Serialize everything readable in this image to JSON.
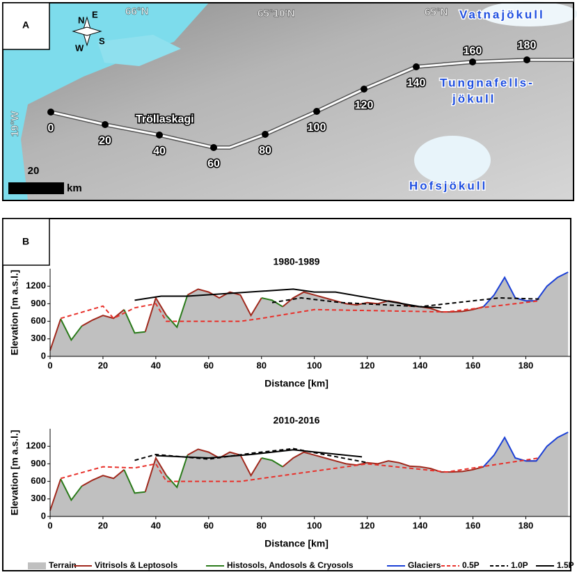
{
  "panel_a": {
    "label": "A",
    "map_labels": [
      "66°N",
      "65°10'N",
      "65°N",
      "19°W",
      "Vatnajökull",
      "Tungnafells-",
      "jökull",
      "Hofsjökull",
      "Tröllaskagi"
    ],
    "compass": [
      "N",
      "E",
      "S",
      "W"
    ],
    "route_markers": [
      "0",
      "20",
      "40",
      "60",
      "80",
      "100",
      "120",
      "140",
      "160",
      "180"
    ],
    "scale_bar": {
      "value": "20",
      "unit": "km"
    }
  },
  "panel_b": {
    "label": "B"
  },
  "chart_data": [
    {
      "type": "line",
      "title": "1980-1989",
      "x_label": "Distance [km]",
      "y_label": "Elevation [m a.s.l.]",
      "x": [
        0,
        4,
        8,
        12,
        16,
        20,
        24,
        28,
        32,
        36,
        40,
        44,
        48,
        52,
        56,
        60,
        64,
        68,
        72,
        76,
        80,
        84,
        88,
        92,
        96,
        100,
        104,
        108,
        112,
        116,
        120,
        124,
        128,
        132,
        136,
        140,
        144,
        148,
        152,
        156,
        160,
        164,
        168,
        172,
        176,
        180,
        184,
        188,
        192,
        196
      ],
      "xlim": [
        0,
        197
      ],
      "xticks": [
        0,
        20,
        40,
        60,
        80,
        100,
        120,
        140,
        160,
        180
      ],
      "ylim": [
        0,
        1500
      ],
      "yticks": [
        0,
        300,
        600,
        900,
        1200
      ],
      "series": [
        {
          "name": "Terrain",
          "style": "area",
          "color": "#c0c0c0",
          "values": [
            100,
            640,
            280,
            520,
            620,
            700,
            650,
            800,
            400,
            420,
            1000,
            700,
            500,
            1050,
            1150,
            1100,
            1000,
            1100,
            1050,
            700,
            1000,
            960,
            850,
            1000,
            1100,
            1050,
            1000,
            950,
            900,
            880,
            920,
            900,
            950,
            920,
            860,
            850,
            820,
            760,
            760,
            770,
            800,
            850,
            1050,
            1350,
            1000,
            950,
            950,
            1200,
            1350,
            1440
          ]
        },
        {
          "name": "Vitrisols & Leptosols",
          "style": "line",
          "color": "#a0281c",
          "values": [
            100,
            640,
            null,
            520,
            620,
            700,
            650,
            800,
            null,
            420,
            1000,
            700,
            null,
            1050,
            1150,
            1100,
            1000,
            1100,
            1050,
            700,
            1000,
            null,
            850,
            1000,
            1100,
            1050,
            1000,
            950,
            900,
            880,
            920,
            900,
            950,
            920,
            860,
            850,
            820,
            760,
            760,
            770,
            800,
            850,
            null,
            null,
            null,
            950,
            950,
            null,
            null,
            null
          ]
        },
        {
          "name": "Histosols, Andosols & Cryosols",
          "style": "line",
          "color": "#2a7a1a",
          "values": [
            null,
            640,
            280,
            520,
            null,
            null,
            null,
            800,
            400,
            420,
            null,
            700,
            500,
            1050,
            null,
            null,
            null,
            null,
            null,
            null,
            1000,
            960,
            850,
            null,
            null,
            null,
            null,
            null,
            null,
            null,
            null,
            null,
            null,
            null,
            null,
            null,
            null,
            null,
            null,
            null,
            null,
            null,
            null,
            null,
            null,
            null,
            null,
            null,
            null,
            null
          ]
        },
        {
          "name": "Glaciers",
          "style": "line",
          "color": "#1a3fd6",
          "values": [
            null,
            null,
            null,
            null,
            null,
            null,
            null,
            null,
            null,
            null,
            null,
            null,
            null,
            null,
            null,
            null,
            null,
            null,
            null,
            null,
            null,
            null,
            null,
            null,
            null,
            null,
            null,
            null,
            null,
            null,
            null,
            null,
            null,
            null,
            null,
            null,
            null,
            null,
            null,
            null,
            null,
            850,
            1050,
            1350,
            1000,
            950,
            950,
            1200,
            1350,
            1440
          ]
        },
        {
          "name": "0.5P",
          "style": "line",
          "dash": true,
          "color": "#e8302a",
          "x": [
            4,
            20,
            24,
            32,
            40,
            44,
            72,
            80,
            100,
            150,
            185
          ],
          "values": [
            650,
            860,
            650,
            830,
            900,
            600,
            600,
            650,
            800,
            760,
            950
          ]
        },
        {
          "name": "1.0P",
          "style": "line",
          "dash": true,
          "color": "#000000",
          "x": [
            84,
            95,
            110,
            140,
            170,
            185
          ],
          "values": [
            920,
            1000,
            920,
            850,
            1000,
            980
          ]
        },
        {
          "name": "1.5P",
          "style": "line",
          "color": "#000000",
          "x": [
            32,
            42,
            52,
            92,
            100,
            108,
            140,
            148
          ],
          "values": [
            960,
            1030,
            1030,
            1150,
            1100,
            1100,
            850,
            830
          ]
        }
      ]
    },
    {
      "type": "line",
      "title": "2010-2016",
      "x_label": "Distance [km]",
      "y_label": "Elevation [m a.s.l.]",
      "x": [
        0,
        4,
        8,
        12,
        16,
        20,
        24,
        28,
        32,
        36,
        40,
        44,
        48,
        52,
        56,
        60,
        64,
        68,
        72,
        76,
        80,
        84,
        88,
        92,
        96,
        100,
        104,
        108,
        112,
        116,
        120,
        124,
        128,
        132,
        136,
        140,
        144,
        148,
        152,
        156,
        160,
        164,
        168,
        172,
        176,
        180,
        184,
        188,
        192,
        196
      ],
      "xlim": [
        0,
        197
      ],
      "xticks": [
        0,
        20,
        40,
        60,
        80,
        100,
        120,
        140,
        160,
        180
      ],
      "ylim": [
        0,
        1500
      ],
      "yticks": [
        0,
        300,
        600,
        900,
        1200
      ],
      "series": [
        {
          "name": "Terrain",
          "style": "area",
          "color": "#c0c0c0",
          "values": [
            100,
            640,
            280,
            520,
            620,
            700,
            650,
            800,
            400,
            420,
            1000,
            700,
            500,
            1050,
            1150,
            1100,
            1000,
            1100,
            1050,
            700,
            1000,
            960,
            850,
            1000,
            1100,
            1050,
            1000,
            950,
            900,
            880,
            920,
            900,
            950,
            920,
            860,
            850,
            820,
            760,
            760,
            770,
            800,
            850,
            1050,
            1350,
            1000,
            950,
            950,
            1200,
            1350,
            1440
          ]
        },
        {
          "name": "Vitrisols & Leptosols",
          "style": "line",
          "color": "#a0281c",
          "values": [
            100,
            640,
            null,
            520,
            620,
            700,
            650,
            800,
            null,
            420,
            1000,
            700,
            null,
            1050,
            1150,
            1100,
            1000,
            1100,
            1050,
            700,
            1000,
            null,
            850,
            1000,
            1100,
            1050,
            1000,
            950,
            900,
            880,
            920,
            900,
            950,
            920,
            860,
            850,
            820,
            760,
            760,
            770,
            800,
            850,
            null,
            null,
            null,
            950,
            950,
            null,
            null,
            null
          ]
        },
        {
          "name": "Histosols, Andosols & Cryosols",
          "style": "line",
          "color": "#2a7a1a",
          "values": [
            null,
            640,
            280,
            520,
            null,
            null,
            null,
            800,
            400,
            420,
            null,
            700,
            500,
            1050,
            null,
            null,
            null,
            null,
            null,
            null,
            1000,
            960,
            850,
            null,
            null,
            null,
            null,
            null,
            null,
            null,
            null,
            null,
            null,
            null,
            null,
            null,
            null,
            null,
            null,
            null,
            null,
            null,
            null,
            null,
            null,
            null,
            null,
            null,
            null,
            null
          ]
        },
        {
          "name": "Glaciers",
          "style": "line",
          "color": "#1a3fd6",
          "values": [
            null,
            null,
            null,
            null,
            null,
            null,
            null,
            null,
            null,
            null,
            null,
            null,
            null,
            null,
            null,
            null,
            null,
            null,
            null,
            null,
            null,
            null,
            null,
            null,
            null,
            null,
            null,
            null,
            null,
            null,
            null,
            null,
            null,
            null,
            null,
            null,
            null,
            null,
            null,
            null,
            null,
            850,
            1050,
            1350,
            1000,
            950,
            950,
            1200,
            1350,
            1440
          ]
        },
        {
          "name": "0.5P",
          "style": "line",
          "dash": true,
          "color": "#e8302a",
          "x": [
            4,
            20,
            32,
            40,
            44,
            72,
            80,
            120,
            150,
            185
          ],
          "values": [
            650,
            850,
            830,
            900,
            600,
            600,
            650,
            900,
            760,
            1000
          ]
        },
        {
          "name": "1.0P",
          "style": "line",
          "dash": true,
          "color": "#000000",
          "x": [
            32,
            40,
            60,
            76,
            92,
            120
          ],
          "values": [
            960,
            1060,
            980,
            1080,
            1160,
            920
          ]
        },
        {
          "name": "1.5P",
          "style": "line",
          "color": "#000000",
          "x": [
            40,
            60,
            76,
            92,
            118
          ],
          "values": [
            1040,
            1000,
            1060,
            1140,
            1020
          ]
        }
      ]
    }
  ]
}
